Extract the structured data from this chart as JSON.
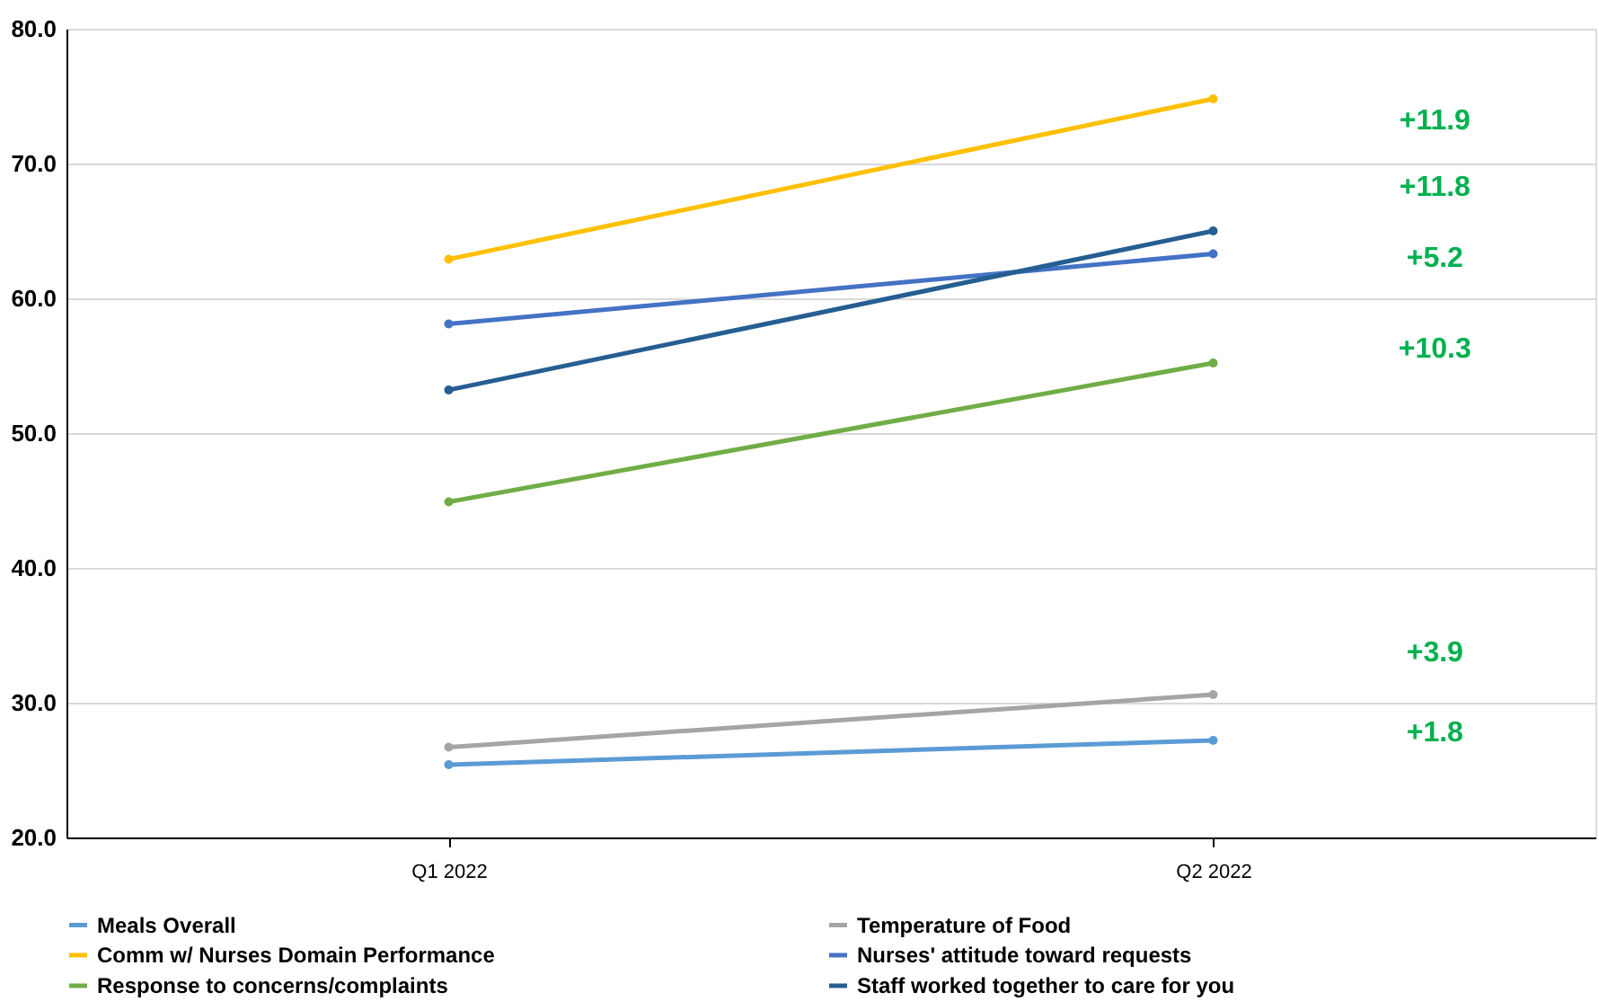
{
  "chart_data": {
    "type": "line",
    "categories": [
      "Q1 2022",
      "Q2 2022"
    ],
    "series": [
      {
        "name": "Meals Overall",
        "color": "#5b9bd5",
        "values": [
          25.4,
          27.2
        ]
      },
      {
        "name": "Temperature of Food",
        "color": "#a5a5a5",
        "values": [
          26.7,
          30.6
        ]
      },
      {
        "name": "Comm w/ Nurses Domain Performance",
        "color": "#ffc000",
        "values": [
          62.9,
          74.8
        ]
      },
      {
        "name": "Nurses' attitude toward requests",
        "color": "#4472c4",
        "values": [
          58.1,
          63.3
        ]
      },
      {
        "name": "Response to concerns/complaints",
        "color": "#70ad47",
        "values": [
          44.9,
          55.2
        ]
      },
      {
        "name": "Staff worked together to care for you",
        "color": "#255e91",
        "values": [
          53.2,
          65.0
        ]
      }
    ],
    "ylim": [
      20,
      80
    ],
    "yticks": [
      {
        "value": 20,
        "label": "20.0"
      },
      {
        "value": 30,
        "label": "30.0"
      },
      {
        "value": 40,
        "label": "40.0"
      },
      {
        "value": 50,
        "label": "50.0"
      },
      {
        "value": 60,
        "label": "60.0"
      },
      {
        "value": 70,
        "label": "70.0"
      },
      {
        "value": 80,
        "label": "80.0"
      }
    ],
    "grid": "y",
    "legend": "bottom",
    "marker": "circle",
    "line_style": "solid",
    "annotations": [
      "+11.9",
      "+11.8",
      "+5.2",
      "+10.3",
      "+3.9",
      "+1.8"
    ]
  }
}
